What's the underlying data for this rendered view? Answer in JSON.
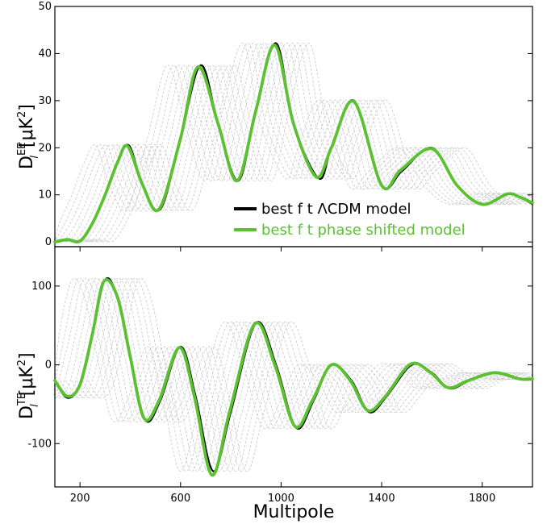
{
  "chart_data": [
    {
      "type": "line",
      "panel": "top",
      "ylabel": "D_l^EE [μK²]",
      "ylabel_main": "D",
      "ylabel_sub": "l",
      "ylabel_sup": "EE",
      "ylabel_unit": "[μK",
      "ylabel_unit_sup": "2",
      "ylabel_unit_close": "]",
      "xlim": [
        100,
        2000
      ],
      "ylim": [
        -1,
        50
      ],
      "yticks": [
        0,
        10,
        20,
        30,
        40,
        50
      ],
      "ytick_labels": [
        "0",
        "10",
        "20",
        "30",
        "40",
        "50"
      ],
      "grid": false,
      "legend": {
        "placement": "inside-lower-right",
        "entries": [
          {
            "label": "best f t ΛCDM model",
            "color": "#000000"
          },
          {
            "label": "best f t phase shifted model",
            "color": "#5cc132"
          }
        ]
      },
      "series": [
        {
          "color": "#000000",
          "x": [
            100,
            150,
            200,
            250,
            300,
            350,
            395,
            450,
            520,
            600,
            680,
            750,
            830,
            900,
            980,
            1050,
            1150,
            1200,
            1290,
            1400,
            1480,
            1600,
            1700,
            1800,
            1900,
            1950,
            2000
          ],
          "y": [
            0,
            0.5,
            0.2,
            4,
            10,
            17,
            20.5,
            12,
            7,
            22,
            37.5,
            25,
            13,
            28,
            42.2,
            25,
            13.5,
            20,
            30,
            12,
            15,
            20,
            12,
            8,
            10.3,
            9.5,
            8
          ]
        },
        {
          "color": "#5cc132",
          "x": [
            100,
            150,
            200,
            250,
            300,
            350,
            390,
            450,
            515,
            600,
            670,
            750,
            825,
            900,
            975,
            1050,
            1140,
            1200,
            1290,
            1400,
            1475,
            1600,
            1700,
            1800,
            1900,
            1950,
            2000
          ],
          "y": [
            0,
            0.5,
            0.2,
            4,
            10,
            17,
            20.3,
            12,
            7,
            22,
            37.2,
            25,
            13,
            28,
            41.8,
            25,
            13.8,
            20,
            29.8,
            12,
            15.2,
            19.8,
            12,
            8,
            10.2,
            9.5,
            8.3
          ]
        }
      ]
    },
    {
      "type": "line",
      "panel": "bottom",
      "xlabel": "Multipole",
      "ylabel": "D_l^TE [μK²]",
      "ylabel_main": "D",
      "ylabel_sub": "l",
      "ylabel_sup": "TE",
      "ylabel_unit": "[μK",
      "ylabel_unit_sup": "2",
      "ylabel_unit_close": "]",
      "xlim": [
        100,
        2000
      ],
      "ylim": [
        -155,
        150
      ],
      "xticks": [
        200,
        600,
        1000,
        1400,
        1800
      ],
      "xtick_labels": [
        "200",
        "600",
        "1000",
        "1400",
        "1800"
      ],
      "yticks": [
        100,
        0,
        -100
      ],
      "ytick_labels": [
        "100",
        "0",
        "-100"
      ],
      "grid": false,
      "series": [
        {
          "color": "#000000",
          "x": [
            100,
            150,
            200,
            250,
            300,
            350,
            400,
            460,
            520,
            600,
            660,
            730,
            800,
            900,
            980,
            1060,
            1130,
            1200,
            1280,
            1350,
            1420,
            1520,
            1600,
            1670,
            1750,
            1850,
            1950,
            2000
          ],
          "y": [
            -20,
            -42,
            -25,
            40,
            108,
            85,
            10,
            -70,
            -45,
            23,
            -40,
            -135,
            -60,
            53,
            0,
            -80,
            -45,
            0,
            -20,
            -60,
            -40,
            0,
            -10,
            -30,
            -20,
            -10,
            -18,
            -18
          ]
        },
        {
          "color": "#5cc132",
          "x": [
            100,
            150,
            200,
            250,
            295,
            350,
            400,
            455,
            515,
            595,
            655,
            725,
            795,
            895,
            975,
            1055,
            1125,
            1200,
            1275,
            1345,
            1415,
            1515,
            1595,
            1665,
            1745,
            1850,
            1950,
            2000
          ],
          "y": [
            -20,
            -40,
            -25,
            40,
            106,
            85,
            10,
            -68,
            -45,
            22,
            -40,
            -140,
            -60,
            52,
            0,
            -78,
            -45,
            0,
            -20,
            -58,
            -40,
            1,
            -10,
            -29,
            -20,
            -10,
            -18,
            -18
          ]
        }
      ]
    }
  ]
}
